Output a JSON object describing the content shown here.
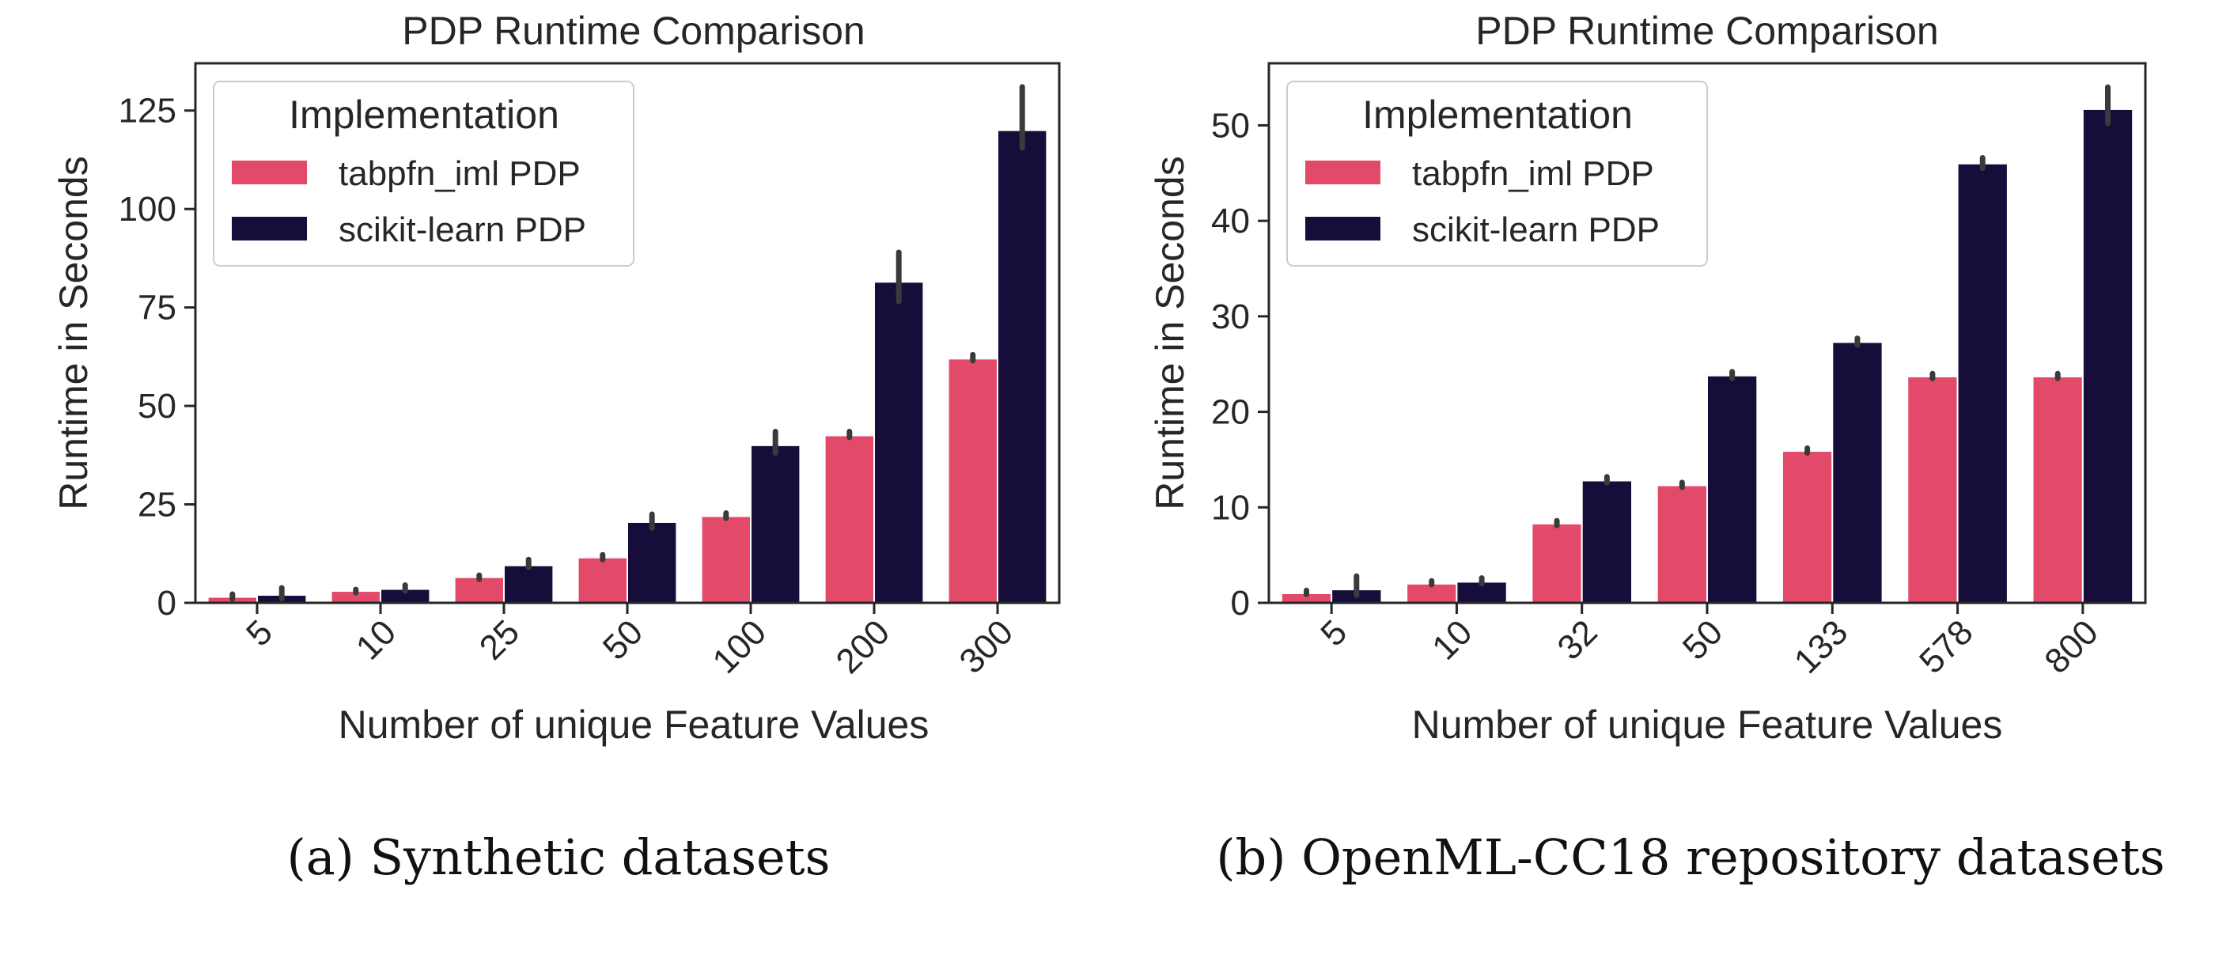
{
  "colors": {
    "tabpfn": "#e34a6a",
    "sklearn": "#160d3b",
    "errorbar": "#3a3a3a",
    "axis": "#262626"
  },
  "captions": {
    "a": "(a) Synthetic datasets",
    "b": "(b) OpenML-CC18 repository datasets"
  },
  "chart_data": [
    {
      "type": "bar",
      "title": "PDP Runtime Comparison",
      "xlabel": "Number of unique Feature Values",
      "ylabel": "Runtime in Seconds",
      "ylim": [
        0,
        137
      ],
      "yticks": [
        0,
        25,
        50,
        75,
        100,
        125
      ],
      "categories": [
        "5",
        "10",
        "25",
        "50",
        "100",
        "200",
        "300"
      ],
      "legend": {
        "title": "Implementation",
        "placement": "top-left"
      },
      "series": [
        {
          "name": "tabpfn_iml PDP",
          "color_key": "tabpfn",
          "values": [
            1.5,
            3,
            6.5,
            11.5,
            22,
            42.5,
            62
          ],
          "err_low": [
            1.0,
            2.6,
            6.0,
            11.0,
            21.5,
            42.0,
            61.5
          ],
          "err_high": [
            2.2,
            3.4,
            7.0,
            12.2,
            22.8,
            43.5,
            63.0
          ]
        },
        {
          "name": "scikit-learn PDP",
          "color_key": "sklearn",
          "values": [
            2,
            3.5,
            9.5,
            20.5,
            40,
            81.5,
            120
          ],
          "err_low": [
            1.0,
            3.0,
            9.0,
            19.0,
            38.0,
            76.5,
            115.5
          ],
          "err_high": [
            3.8,
            4.5,
            11.0,
            22.5,
            43.5,
            89.0,
            131.0
          ]
        }
      ]
    },
    {
      "type": "bar",
      "title": "PDP Runtime Comparison",
      "xlabel": "Number of unique Feature Values",
      "ylabel": "Runtime in Seconds",
      "ylim": [
        0,
        56.5
      ],
      "yticks": [
        0,
        10,
        20,
        30,
        40,
        50
      ],
      "categories": [
        "5",
        "10",
        "32",
        "50",
        "133",
        "578",
        "800"
      ],
      "legend": {
        "title": "Implementation",
        "placement": "top-left"
      },
      "series": [
        {
          "name": "tabpfn_iml PDP",
          "color_key": "tabpfn",
          "values": [
            1,
            2,
            8.3,
            12.3,
            15.9,
            23.7,
            23.7
          ],
          "err_low": [
            0.9,
            1.9,
            8.1,
            12.1,
            15.7,
            23.5,
            23.5
          ],
          "err_high": [
            1.3,
            2.3,
            8.6,
            12.6,
            16.2,
            24.0,
            24.0
          ]
        },
        {
          "name": "scikit-learn PDP",
          "color_key": "sklearn",
          "values": [
            1.4,
            2.2,
            12.8,
            23.8,
            27.3,
            46,
            51.7
          ],
          "err_low": [
            0.8,
            2.0,
            12.6,
            23.5,
            27.0,
            45.5,
            50.2
          ],
          "err_high": [
            2.8,
            2.6,
            13.2,
            24.2,
            27.7,
            46.6,
            54.0
          ]
        }
      ]
    }
  ]
}
